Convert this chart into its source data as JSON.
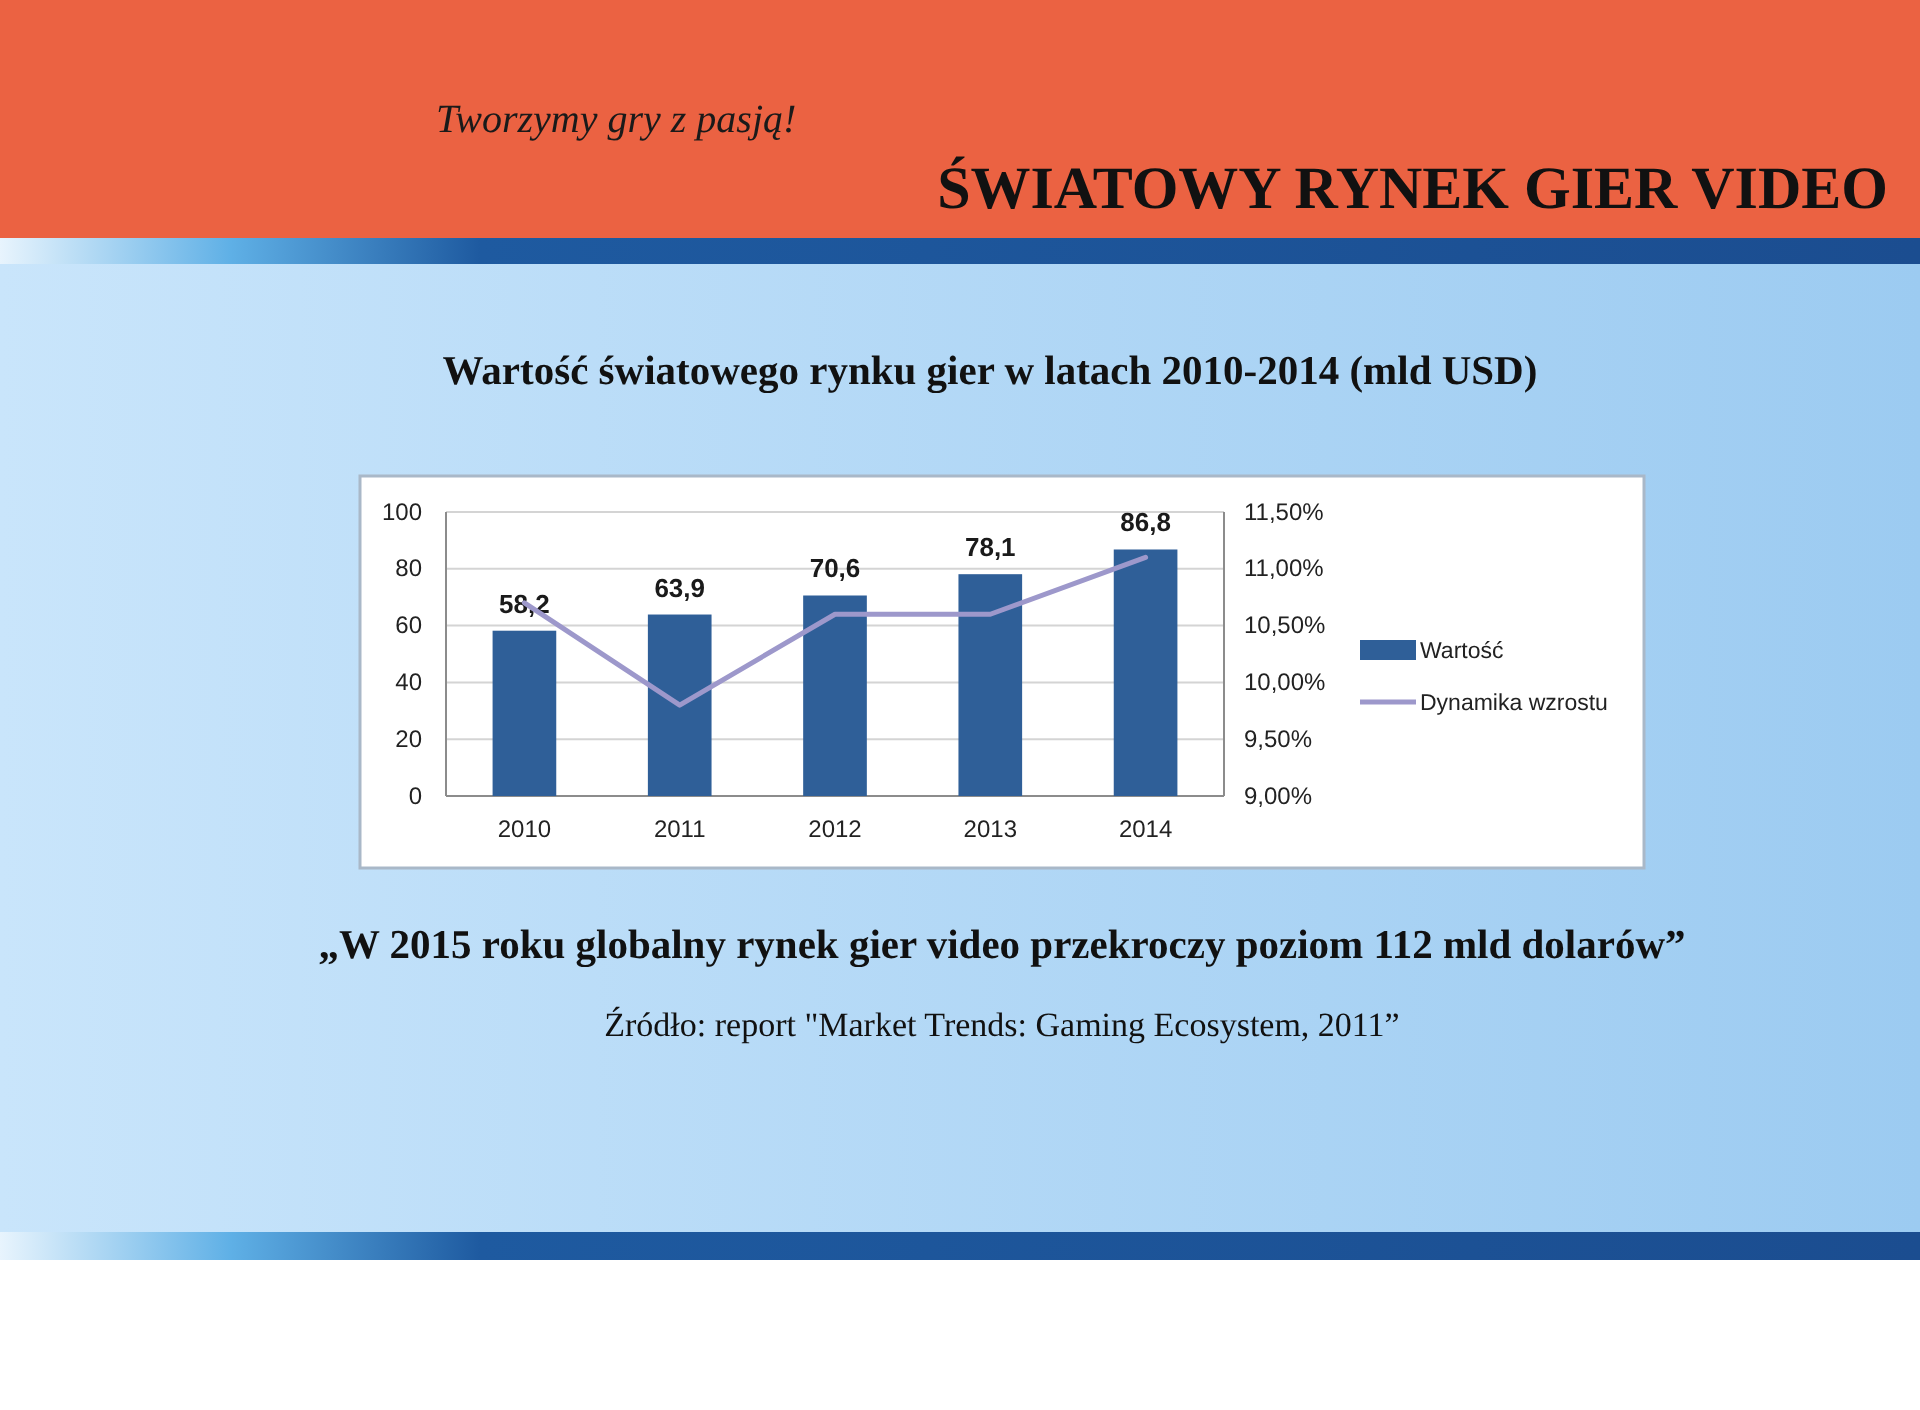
{
  "chart_data": {
    "type": "bar",
    "title": "ŚWIATOWY RYNEK GIER VIDEO",
    "subtitle": "Wartość światowego rynku gier w latach 2010-2014 (mld USD)",
    "annotations": [
      "Tworzymy gry z pasją!",
      "„W 2015 roku globalny rynek gier video przekroczy poziom 112 mld dolarów”",
      "Źródło: report \"Market Trends: Gaming Ecosystem, 2011”"
    ],
    "categories": [
      "2010",
      "2011",
      "2012",
      "2013",
      "2014"
    ],
    "series": [
      {
        "name": "Wartość",
        "color": "#2f5f98",
        "values": [
          58.2,
          63.9,
          70.6,
          78.1,
          86.8
        ],
        "value_labels": [
          "58,2",
          "63,9",
          "70,6",
          "78,1",
          "86,8"
        ]
      },
      {
        "name": "Dynamika wzrostu",
        "type": "line",
        "axis": "y2",
        "color": "#9d98cb",
        "values": [
          10.7,
          9.8,
          10.6,
          10.6,
          11.1
        ]
      }
    ],
    "ylim": [
      0,
      100
    ],
    "yticks": [
      0,
      20,
      40,
      60,
      80,
      100
    ],
    "y2lim": [
      9,
      11.5
    ],
    "y2ticks": [
      {
        "value": 9,
        "label": "9,00%"
      },
      {
        "value": 9.5,
        "label": "9,50%"
      },
      {
        "value": 10,
        "label": "10,00%"
      },
      {
        "value": 10.5,
        "label": "10,50%"
      },
      {
        "value": 11,
        "label": "11,00%"
      },
      {
        "value": 11.5,
        "label": "11,50%"
      }
    ],
    "grid": "y",
    "legend": "right"
  }
}
